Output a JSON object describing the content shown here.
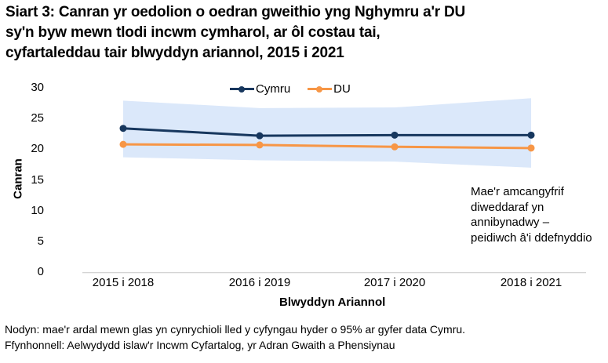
{
  "title_lines": [
    "Siart 3: Canran yr oedolion o oedran gweithio yng Nghymru a'r DU",
    "sy'n byw mewn tlodi incwm cymharol, ar ôl costau tai,",
    "cyfartaleddau tair blwyddyn ariannol, 2015 i 2021"
  ],
  "chart_data": {
    "type": "line",
    "categories": [
      "2015 i 2018",
      "2016 i 2019",
      "2017 i 2020",
      "2018 i 2021"
    ],
    "series": [
      {
        "name": "Cymru",
        "color": "#17375E",
        "values": [
          23.4,
          22.2,
          22.3,
          22.3
        ]
      },
      {
        "name": "DU",
        "color": "#F79646",
        "values": [
          20.8,
          20.7,
          20.4,
          20.2
        ]
      }
    ],
    "confidence_band": {
      "applies_to": "Cymru",
      "color": "#DBE8FA",
      "upper": [
        27.9,
        26.7,
        26.8,
        28.3
      ],
      "lower": [
        18.7,
        18.2,
        18.0,
        17.0
      ]
    },
    "xlabel": "Blwyddyn Ariannol",
    "ylabel": "Canran",
    "ylim": [
      0,
      30
    ],
    "y_ticks": [
      0,
      5,
      10,
      15,
      20,
      25,
      30
    ],
    "legend_position": "top-center",
    "grid": false,
    "axis_line_color": "#C6C6C6"
  },
  "annotation_lines": [
    "Mae'r amcangyfrif",
    "diweddaraf yn",
    "annibynadwy –",
    "peidiwch â'i ddefnyddio"
  ],
  "footer": {
    "note": "Nodyn: mae'r ardal mewn glas yn cynrychioli lled y cyfyngau hyder o 95% ar gyfer data Cymru.",
    "source": "Ffynhonnell: Aelwydydd islaw'r Incwm Cyfartalog, yr Adran Gwaith a Phensiynau"
  }
}
